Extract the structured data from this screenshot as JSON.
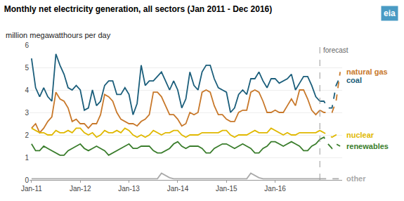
{
  "chart_data": {
    "type": "line",
    "title": "Monthly net electricity generation, all sectors (Jan 2011 - Dec 2016)",
    "ylabel": "million megawatthours per day",
    "categories": [
      "Jan-11",
      null,
      null,
      null,
      null,
      null,
      null,
      null,
      null,
      null,
      null,
      null,
      "Jan-12",
      null,
      null,
      null,
      null,
      null,
      null,
      null,
      null,
      null,
      null,
      null,
      "Jan-13",
      null,
      null,
      null,
      null,
      null,
      null,
      null,
      null,
      null,
      null,
      null,
      "Jan-14",
      null,
      null,
      null,
      null,
      null,
      null,
      null,
      null,
      null,
      null,
      null,
      "Jan-15",
      null,
      null,
      null,
      null,
      null,
      null,
      null,
      null,
      null,
      null,
      null,
      "Jan-16",
      null,
      null,
      null,
      null,
      null,
      null,
      null,
      null,
      null,
      null,
      null,
      null,
      null,
      null,
      null,
      null
    ],
    "ylim": [
      0,
      6
    ],
    "yticks": [
      0,
      1,
      2,
      3,
      4,
      5,
      6
    ],
    "grid": true,
    "annotations": [
      {
        "text": "forecast",
        "x": 71
      },
      {
        "text": "eia"
      }
    ],
    "series": [
      {
        "name": "coal",
        "color": "#1b5e7b",
        "line_style": "solid",
        "values": [
          5.4,
          4.1,
          3.7,
          4.1,
          3.7,
          3.5,
          5.6,
          5.1,
          4.7,
          4.1,
          4.0,
          4.2,
          4.0,
          3.1,
          3.2,
          4.0,
          3.3,
          3.5,
          4.2,
          4.4,
          4.4,
          3.8,
          3.8,
          4.1,
          3.8,
          2.9,
          3.4,
          5.1,
          4.2,
          4.4,
          4.4,
          4.6,
          4.8,
          4.4,
          4.0,
          4.4,
          4.0,
          3.2,
          3.6,
          4.8,
          4.2,
          4.0,
          4.8,
          5.1,
          5.1,
          4.5,
          4.1,
          4.0,
          3.9,
          3.0,
          3.2,
          3.8,
          4.0,
          3.8,
          4.5,
          4.5,
          4.8,
          4.4,
          4.1,
          4.5,
          4.5,
          4.3,
          4.4,
          4.5,
          4.7,
          4.0,
          4.3,
          4.6,
          4.6,
          4.2,
          3.7,
          3.5,
          null,
          null,
          null,
          null,
          null
        ]
      },
      {
        "name": "natural gas",
        "color": "#c8782a",
        "line_style": "solid",
        "values": [
          2.3,
          2.5,
          2.1,
          2.3,
          2.6,
          2.8,
          3.9,
          3.6,
          3.5,
          3.2,
          2.6,
          2.7,
          2.5,
          2.5,
          2.3,
          2.5,
          2.5,
          2.9,
          3.8,
          3.7,
          3.5,
          3.0,
          2.7,
          2.6,
          2.5,
          2.5,
          2.4,
          2.6,
          2.7,
          2.9,
          3.9,
          3.9,
          3.7,
          3.3,
          2.9,
          2.9,
          2.7,
          2.4,
          2.5,
          3.0,
          2.9,
          3.0,
          3.9,
          4.0,
          3.9,
          3.3,
          2.9,
          2.9,
          2.7,
          2.6,
          2.6,
          3.0,
          3.1,
          3.1,
          3.9,
          4.0,
          3.9,
          3.5,
          3.0,
          3.0,
          3.1,
          3.0,
          3.0,
          3.3,
          3.6,
          3.3,
          4.0,
          4.0,
          3.6,
          3.1,
          2.9,
          3.1,
          null,
          null,
          null,
          null,
          null
        ]
      },
      {
        "name": "nuclear",
        "color": "#e0b800",
        "line_style": "solid",
        "values": [
          2.3,
          2.2,
          2.1,
          2.1,
          2.0,
          2.0,
          2.2,
          2.1,
          2.1,
          2.2,
          2.1,
          2.3,
          2.3,
          2.1,
          2.0,
          2.1,
          1.9,
          2.0,
          2.2,
          2.1,
          2.1,
          2.2,
          2.1,
          2.3,
          2.2,
          2.0,
          1.9,
          2.0,
          1.9,
          2.0,
          2.2,
          2.1,
          2.0,
          2.1,
          2.1,
          2.2,
          2.2,
          2.0,
          1.9,
          2.0,
          2.0,
          2.0,
          2.1,
          2.1,
          2.1,
          2.1,
          2.1,
          2.2,
          2.2,
          2.0,
          1.9,
          2.0,
          2.0,
          2.0,
          2.1,
          2.2,
          2.1,
          2.1,
          2.1,
          2.3,
          2.2,
          2.1,
          2.0,
          2.1,
          2.0,
          2.0,
          2.1,
          2.1,
          2.1,
          2.1,
          2.1,
          2.2,
          null,
          null,
          null,
          null,
          null
        ]
      },
      {
        "name": "renewables",
        "color": "#3a7d2c",
        "line_style": "solid",
        "values": [
          1.6,
          1.3,
          1.3,
          1.5,
          1.4,
          1.3,
          1.2,
          1.1,
          1.1,
          1.3,
          1.4,
          1.5,
          1.6,
          1.4,
          1.3,
          1.4,
          1.5,
          1.4,
          1.3,
          1.1,
          1.2,
          1.3,
          1.4,
          1.5,
          1.6,
          1.4,
          1.4,
          1.5,
          1.5,
          1.5,
          1.3,
          1.2,
          1.2,
          1.3,
          1.4,
          1.6,
          1.7,
          1.5,
          1.4,
          1.5,
          1.5,
          1.5,
          1.4,
          1.2,
          1.2,
          1.4,
          1.5,
          1.6,
          1.6,
          1.5,
          1.4,
          1.5,
          1.6,
          1.5,
          1.4,
          1.2,
          1.2,
          1.4,
          1.5,
          1.7,
          1.7,
          1.6,
          1.5,
          1.6,
          1.7,
          1.6,
          1.5,
          1.3,
          1.3,
          1.5,
          1.6,
          1.8,
          null,
          null,
          null,
          null,
          null
        ]
      },
      {
        "name": "other",
        "color": "#aaaaaa",
        "line_style": "solid",
        "values": [
          0.05,
          0.05,
          0.05,
          0.05,
          0.05,
          0.05,
          0.05,
          0.05,
          0.05,
          0.05,
          0.05,
          0.05,
          0.05,
          0.05,
          0.05,
          0.05,
          0.05,
          0.05,
          0.05,
          0.05,
          0.05,
          0.05,
          0.05,
          0.05,
          0.05,
          0.05,
          0.05,
          0.05,
          0.05,
          0.05,
          0.05,
          0.05,
          0.3,
          0.2,
          0.1,
          0.05,
          0.05,
          0.05,
          0.05,
          0.05,
          0.05,
          0.05,
          0.05,
          0.05,
          0.05,
          0.05,
          0.05,
          0.05,
          0.05,
          0.05,
          0.05,
          0.05,
          0.05,
          0.05,
          0.3,
          0.2,
          0.1,
          0.05,
          0.05,
          0.05,
          0.05,
          0.05,
          0.05,
          0.05,
          0.05,
          0.05,
          0.05,
          0.05,
          0.05,
          0.05,
          0.05,
          0.05,
          null,
          null,
          null,
          null,
          null
        ]
      },
      {
        "name": "coal",
        "color": "#1b5e7b",
        "line_style": "dashed",
        "values": [
          null,
          null,
          null,
          null,
          null,
          null,
          null,
          null,
          null,
          null,
          null,
          null,
          null,
          null,
          null,
          null,
          null,
          null,
          null,
          null,
          null,
          null,
          null,
          null,
          null,
          null,
          null,
          null,
          null,
          null,
          null,
          null,
          null,
          null,
          null,
          null,
          null,
          null,
          null,
          null,
          null,
          null,
          null,
          null,
          null,
          null,
          null,
          null,
          null,
          null,
          null,
          null,
          null,
          null,
          null,
          null,
          null,
          null,
          null,
          null,
          null,
          null,
          null,
          null,
          null,
          null,
          null,
          null,
          null,
          null,
          null,
          3.5,
          3.5,
          3.2,
          3.2,
          4.2,
          4.6
        ]
      },
      {
        "name": "natural gas",
        "color": "#c8782a",
        "line_style": "dashed",
        "values": [
          null,
          null,
          null,
          null,
          null,
          null,
          null,
          null,
          null,
          null,
          null,
          null,
          null,
          null,
          null,
          null,
          null,
          null,
          null,
          null,
          null,
          null,
          null,
          null,
          null,
          null,
          null,
          null,
          null,
          null,
          null,
          null,
          null,
          null,
          null,
          null,
          null,
          null,
          null,
          null,
          null,
          null,
          null,
          null,
          null,
          null,
          null,
          null,
          null,
          null,
          null,
          null,
          null,
          null,
          null,
          null,
          null,
          null,
          null,
          null,
          null,
          null,
          null,
          null,
          null,
          null,
          null,
          null,
          null,
          null,
          null,
          3.1,
          3.0,
          3.0,
          3.0,
          3.5,
          4.8
        ]
      },
      {
        "name": "nuclear",
        "color": "#e0b800",
        "line_style": "dashed",
        "values": [
          null,
          null,
          null,
          null,
          null,
          null,
          null,
          null,
          null,
          null,
          null,
          null,
          null,
          null,
          null,
          null,
          null,
          null,
          null,
          null,
          null,
          null,
          null,
          null,
          null,
          null,
          null,
          null,
          null,
          null,
          null,
          null,
          null,
          null,
          null,
          null,
          null,
          null,
          null,
          null,
          null,
          null,
          null,
          null,
          null,
          null,
          null,
          null,
          null,
          null,
          null,
          null,
          null,
          null,
          null,
          null,
          null,
          null,
          null,
          null,
          null,
          null,
          null,
          null,
          null,
          null,
          null,
          null,
          null,
          null,
          null,
          2.2,
          2.1,
          2.0,
          1.9,
          2.0,
          2.0
        ]
      },
      {
        "name": "renewables",
        "color": "#3a7d2c",
        "line_style": "dashed",
        "values": [
          null,
          null,
          null,
          null,
          null,
          null,
          null,
          null,
          null,
          null,
          null,
          null,
          null,
          null,
          null,
          null,
          null,
          null,
          null,
          null,
          null,
          null,
          null,
          null,
          null,
          null,
          null,
          null,
          null,
          null,
          null,
          null,
          null,
          null,
          null,
          null,
          null,
          null,
          null,
          null,
          null,
          null,
          null,
          null,
          null,
          null,
          null,
          null,
          null,
          null,
          null,
          null,
          null,
          null,
          null,
          null,
          null,
          null,
          null,
          null,
          null,
          null,
          null,
          null,
          null,
          null,
          null,
          null,
          null,
          null,
          null,
          1.8,
          1.9,
          1.6,
          1.4,
          1.6,
          1.5
        ]
      },
      {
        "name": "other",
        "color": "#aaaaaa",
        "line_style": "dashed",
        "values": [
          null,
          null,
          null,
          null,
          null,
          null,
          null,
          null,
          null,
          null,
          null,
          null,
          null,
          null,
          null,
          null,
          null,
          null,
          null,
          null,
          null,
          null,
          null,
          null,
          null,
          null,
          null,
          null,
          null,
          null,
          null,
          null,
          null,
          null,
          null,
          null,
          null,
          null,
          null,
          null,
          null,
          null,
          null,
          null,
          null,
          null,
          null,
          null,
          null,
          null,
          null,
          null,
          null,
          null,
          null,
          null,
          null,
          null,
          null,
          null,
          null,
          null,
          null,
          null,
          null,
          null,
          null,
          null,
          null,
          null,
          null,
          0.05,
          0.05,
          0.05,
          0.05,
          0.05,
          0.05
        ]
      }
    ]
  }
}
